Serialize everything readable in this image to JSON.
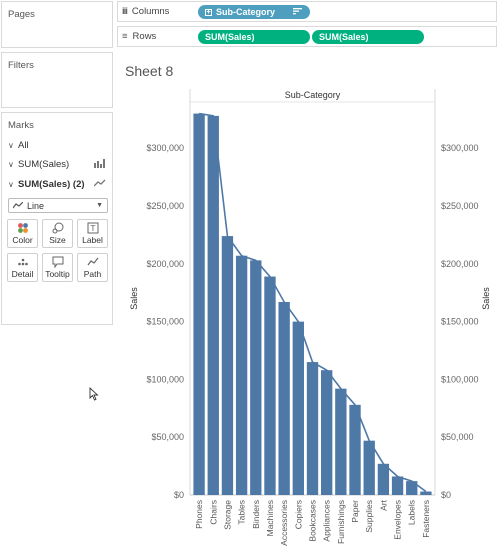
{
  "left_panel": {
    "pages_title": "Pages",
    "filters_title": "Filters",
    "marks": {
      "title": "Marks",
      "all_label": "All",
      "card1_label": "SUM(Sales)",
      "card2_label": "SUM(Sales) (2)",
      "mark_type": "Line",
      "buttons": {
        "color": "Color",
        "size": "Size",
        "label": "Label",
        "detail": "Detail",
        "tooltip": "Tooltip",
        "path": "Path"
      }
    }
  },
  "shelves": {
    "columns_label": "Columns",
    "rows_label": "Rows",
    "columns_pill": "Sub-Category",
    "rows_pills": [
      "SUM(Sales)",
      "SUM(Sales)"
    ]
  },
  "sheet": {
    "title": "Sheet 8"
  },
  "colors": {
    "bar": "#4e79a7",
    "line": "#4e79a7",
    "dim_pill": "#4e9fbf",
    "measure_pill": "#00b180"
  },
  "chart_data": {
    "type": "bar",
    "header": "Sub-Category",
    "ylabel": "Sales",
    "y2label": "Sales",
    "ylim": [
      0,
      340000
    ],
    "yticks": [
      0,
      50000,
      100000,
      150000,
      200000,
      250000,
      300000
    ],
    "ytick_labels": [
      "$0",
      "$50,000",
      "$100,000",
      "$150,000",
      "$200,000",
      "$250,000",
      "$300,000"
    ],
    "categories": [
      "Phones",
      "Chairs",
      "Storage",
      "Tables",
      "Binders",
      "Machines",
      "Accessories",
      "Copiers",
      "Bookcases",
      "Appliances",
      "Furnishings",
      "Paper",
      "Supplies",
      "Art",
      "Envelopes",
      "Labels",
      "Fasteners"
    ],
    "series": [
      {
        "values": [
          330000,
          328000,
          224000,
          207000,
          203000,
          189000,
          167000,
          150000,
          115000,
          108000,
          92000,
          78000,
          47000,
          27000,
          16000,
          12000,
          3000
        ]
      },
      {
        "values": [
          330000,
          328000,
          224000,
          207000,
          203000,
          189000,
          167000,
          150000,
          115000,
          108000,
          92000,
          78000,
          47000,
          27000,
          16000,
          12000,
          3000
        ]
      }
    ]
  }
}
